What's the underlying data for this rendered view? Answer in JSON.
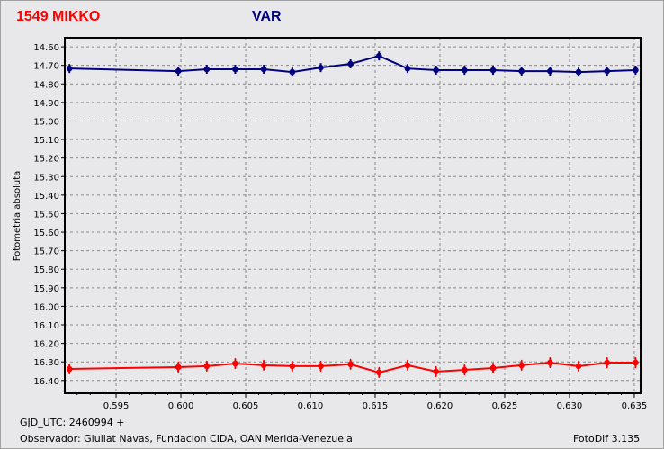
{
  "chart_data": {
    "type": "line",
    "title_left": "1549 MIKKO",
    "title_right": "VAR",
    "ylabel": "Fotometria absoluta",
    "xlabel": "",
    "xlim": [
      0.59104,
      0.63549
    ],
    "ylim": [
      16.469,
      14.551
    ],
    "y_inverted": true,
    "grid": true,
    "xticks": [
      "0.595",
      "0.600",
      "0.605",
      "0.610",
      "0.615",
      "0.620",
      "0.625",
      "0.630",
      "0.635"
    ],
    "yticks": [
      "14.60",
      "14.70",
      "14.80",
      "14.90",
      "15.00",
      "15.10",
      "15.20",
      "15.30",
      "15.40",
      "15.50",
      "15.60",
      "15.70",
      "15.80",
      "15.90",
      "16.00",
      "16.10",
      "16.20",
      "16.30",
      "16.40"
    ],
    "x": [
      0.5914,
      0.5998,
      0.602,
      0.6042,
      0.6064,
      0.6086,
      0.6108,
      0.6131,
      0.6153,
      0.6175,
      0.6197,
      0.6219,
      0.6241,
      0.6263,
      0.6285,
      0.6307,
      0.6329,
      0.6351
    ],
    "series": [
      {
        "name": "VAR",
        "color": "#00007f",
        "values": [
          14.717,
          14.731,
          14.721,
          14.721,
          14.721,
          14.736,
          14.712,
          14.692,
          14.649,
          14.717,
          14.726,
          14.726,
          14.726,
          14.731,
          14.731,
          14.736,
          14.731,
          14.726
        ]
      },
      {
        "name": "1549 MIKKO",
        "color": "#ff0000",
        "values": [
          16.338,
          16.328,
          16.323,
          16.309,
          16.318,
          16.323,
          16.323,
          16.313,
          16.357,
          16.318,
          16.352,
          16.343,
          16.333,
          16.318,
          16.304,
          16.323,
          16.304,
          16.304
        ]
      }
    ]
  },
  "footer": {
    "gjd": "GJD_UTC: 2460994 +",
    "observer": "Observador: Giuliat Navas, Fundacion CIDA, OAN  Merida-Venezuela",
    "version": "FotoDif 3.135"
  }
}
